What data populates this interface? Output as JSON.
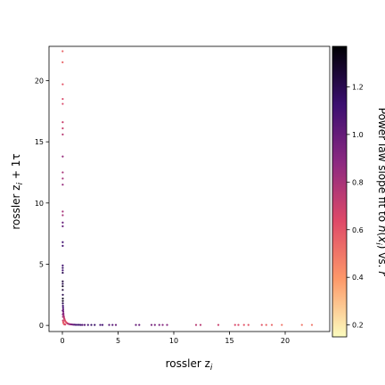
{
  "chart_data": {
    "type": "scatter",
    "title": "",
    "xlabel": "rossler z_i",
    "ylabel": "rossler z_i + 1τ",
    "xlim": [
      -1.2,
      24.0
    ],
    "ylim": [
      -0.5,
      22.8
    ],
    "xticks": [
      0,
      5,
      10,
      15,
      20
    ],
    "yticks": [
      0,
      5,
      10,
      15,
      20
    ],
    "grid": false,
    "legend": "none",
    "colorbar": {
      "label": "Power law slope fit to n(x_i) vs. r",
      "range": [
        0.15,
        1.37
      ],
      "ticks": [
        0.2,
        0.4,
        0.6,
        0.8,
        1.0,
        1.2
      ],
      "colormap": "magma_r",
      "colors": [
        "#fcfdbf",
        "#fd9869",
        "#de4968",
        "#8c2981",
        "#3b0f70",
        "#000004"
      ]
    },
    "points": [
      [
        0.02,
        22.4,
        0.55
      ],
      [
        0.02,
        21.5,
        0.55
      ],
      [
        0.03,
        19.7,
        0.6
      ],
      [
        0.03,
        18.5,
        0.65
      ],
      [
        0.03,
        18.1,
        0.65
      ],
      [
        0.03,
        16.6,
        0.7
      ],
      [
        0.03,
        16.1,
        0.7
      ],
      [
        0.03,
        15.6,
        0.75
      ],
      [
        0.03,
        13.8,
        0.85
      ],
      [
        0.03,
        12.5,
        0.8
      ],
      [
        0.03,
        12.0,
        0.8
      ],
      [
        0.03,
        11.5,
        0.85
      ],
      [
        0.03,
        9.3,
        0.8
      ],
      [
        0.03,
        9.0,
        0.8
      ],
      [
        0.03,
        8.4,
        1.0
      ],
      [
        0.03,
        8.1,
        1.0
      ],
      [
        0.03,
        6.8,
        1.1
      ],
      [
        0.03,
        6.5,
        1.1
      ],
      [
        0.03,
        4.9,
        1.1
      ],
      [
        0.03,
        4.7,
        1.15
      ],
      [
        0.03,
        4.5,
        1.1
      ],
      [
        0.03,
        4.3,
        1.2
      ],
      [
        0.03,
        3.6,
        1.25
      ],
      [
        0.03,
        3.4,
        1.2
      ],
      [
        0.03,
        3.2,
        1.3
      ],
      [
        0.03,
        2.9,
        1.25
      ],
      [
        0.04,
        2.5,
        1.2
      ],
      [
        0.04,
        2.2,
        1.3
      ],
      [
        0.04,
        2.0,
        1.3
      ],
      [
        0.04,
        1.8,
        1.2
      ],
      [
        0.05,
        1.6,
        1.1
      ],
      [
        0.06,
        1.45,
        1.1
      ],
      [
        0.07,
        1.3,
        1.0
      ],
      [
        0.08,
        1.15,
        0.95
      ],
      [
        0.09,
        1.0,
        0.9
      ],
      [
        0.1,
        0.9,
        0.85
      ],
      [
        0.12,
        0.78,
        0.8
      ],
      [
        0.14,
        0.68,
        0.75
      ],
      [
        0.16,
        0.58,
        0.7
      ],
      [
        0.19,
        0.5,
        0.7
      ],
      [
        0.22,
        0.42,
        0.65
      ],
      [
        0.26,
        0.35,
        0.65
      ],
      [
        0.3,
        0.29,
        0.6
      ],
      [
        0.35,
        0.24,
        0.6
      ],
      [
        0.4,
        0.2,
        0.65
      ],
      [
        0.46,
        0.16,
        0.7
      ],
      [
        0.53,
        0.13,
        0.75
      ],
      [
        0.6,
        0.11,
        0.8
      ],
      [
        0.7,
        0.09,
        0.85
      ],
      [
        0.8,
        0.08,
        0.9
      ],
      [
        0.9,
        0.07,
        0.95
      ],
      [
        1.0,
        0.06,
        1.0
      ],
      [
        1.1,
        0.06,
        1.05
      ],
      [
        1.2,
        0.05,
        1.1
      ],
      [
        1.35,
        0.05,
        1.1
      ],
      [
        1.5,
        0.05,
        1.15
      ],
      [
        1.65,
        0.04,
        1.1
      ],
      [
        1.8,
        0.04,
        1.05
      ],
      [
        2.0,
        0.04,
        1.05
      ],
      [
        2.3,
        0.04,
        1.1
      ],
      [
        2.6,
        0.04,
        1.15
      ],
      [
        2.9,
        0.04,
        1.15
      ],
      [
        3.4,
        0.04,
        1.1
      ],
      [
        3.6,
        0.04,
        1.1
      ],
      [
        4.2,
        0.04,
        1.05
      ],
      [
        4.5,
        0.04,
        1.05
      ],
      [
        4.8,
        0.04,
        1.0
      ],
      [
        6.6,
        0.04,
        1.0
      ],
      [
        6.9,
        0.04,
        1.0
      ],
      [
        8.0,
        0.04,
        0.95
      ],
      [
        8.3,
        0.04,
        0.95
      ],
      [
        8.7,
        0.04,
        0.95
      ],
      [
        9.0,
        0.04,
        0.9
      ],
      [
        9.4,
        0.04,
        0.9
      ],
      [
        12.0,
        0.04,
        0.75
      ],
      [
        12.4,
        0.04,
        0.75
      ],
      [
        14.0,
        0.04,
        0.7
      ],
      [
        15.5,
        0.04,
        0.65
      ],
      [
        15.8,
        0.04,
        0.65
      ],
      [
        16.3,
        0.04,
        0.6
      ],
      [
        16.7,
        0.04,
        0.6
      ],
      [
        17.9,
        0.04,
        0.6
      ],
      [
        18.3,
        0.04,
        0.55
      ],
      [
        18.8,
        0.04,
        0.55
      ],
      [
        19.7,
        0.04,
        0.5
      ],
      [
        21.5,
        0.04,
        0.5
      ],
      [
        22.4,
        0.04,
        0.5
      ],
      [
        0.05,
        0.4,
        0.7
      ],
      [
        0.07,
        0.3,
        0.6
      ],
      [
        0.09,
        0.22,
        0.6
      ],
      [
        0.12,
        0.15,
        0.55
      ],
      [
        0.15,
        0.1,
        0.55
      ],
      [
        0.2,
        0.08,
        0.6
      ],
      [
        0.25,
        0.07,
        0.65
      ],
      [
        0.03,
        1.2,
        1.0
      ],
      [
        0.04,
        0.9,
        0.9
      ],
      [
        0.05,
        0.7,
        0.8
      ]
    ]
  }
}
